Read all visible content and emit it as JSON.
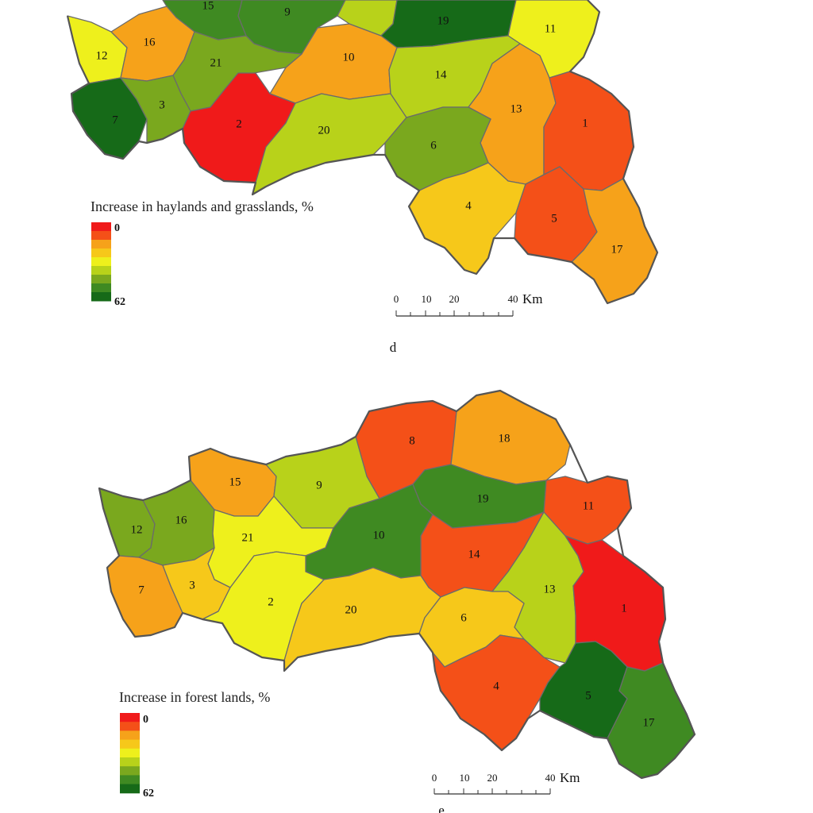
{
  "palette": [
    "#f01a1a",
    "#f45018",
    "#f6a21a",
    "#f6c81a",
    "#eef01c",
    "#b8d21a",
    "#7aa81e",
    "#3f8a22",
    "#166a18"
  ],
  "maps": [
    {
      "id": "d",
      "panel_label": "d",
      "legend": {
        "title": "Increase in haylands and grasslands, %",
        "min_label": "0",
        "max_label": "62",
        "min": 0,
        "max": 62
      },
      "scale": {
        "ticks": [
          "0",
          "10",
          "20",
          "40"
        ],
        "unit": "Km"
      },
      "districts": [
        {
          "id": "1",
          "class": 1
        },
        {
          "id": "2",
          "class": 0
        },
        {
          "id": "3",
          "class": 6
        },
        {
          "id": "4",
          "class": 3
        },
        {
          "id": "5",
          "class": 1
        },
        {
          "id": "6",
          "class": 6
        },
        {
          "id": "7",
          "class": 8
        },
        {
          "id": "9",
          "class": 7
        },
        {
          "id": "10",
          "class": 2
        },
        {
          "id": "11",
          "class": 4
        },
        {
          "id": "12",
          "class": 4
        },
        {
          "id": "13",
          "class": 2
        },
        {
          "id": "14",
          "class": 5
        },
        {
          "id": "15",
          "class": 7
        },
        {
          "id": "16",
          "class": 2
        },
        {
          "id": "17",
          "class": 2
        },
        {
          "id": "19",
          "class": 8
        },
        {
          "id": "20",
          "class": 5
        },
        {
          "id": "21",
          "class": 6
        }
      ]
    },
    {
      "id": "e",
      "panel_label": "e",
      "legend": {
        "title": "Increase in forest lands, %",
        "min_label": "0",
        "max_label": "62",
        "min": 0,
        "max": 62
      },
      "scale": {
        "ticks": [
          "0",
          "10",
          "20",
          "40"
        ],
        "unit": "Km"
      },
      "districts": [
        {
          "id": "1",
          "class": 0
        },
        {
          "id": "2",
          "class": 4
        },
        {
          "id": "3",
          "class": 3
        },
        {
          "id": "4",
          "class": 1
        },
        {
          "id": "5",
          "class": 8
        },
        {
          "id": "6",
          "class": 3
        },
        {
          "id": "7",
          "class": 2
        },
        {
          "id": "8",
          "class": 1
        },
        {
          "id": "9",
          "class": 5
        },
        {
          "id": "10",
          "class": 7
        },
        {
          "id": "11",
          "class": 1
        },
        {
          "id": "12",
          "class": 6
        },
        {
          "id": "13",
          "class": 5
        },
        {
          "id": "14",
          "class": 1
        },
        {
          "id": "15",
          "class": 2
        },
        {
          "id": "16",
          "class": 6
        },
        {
          "id": "17",
          "class": 7
        },
        {
          "id": "18",
          "class": 2
        },
        {
          "id": "19",
          "class": 7
        },
        {
          "id": "20",
          "class": 3
        },
        {
          "id": "21",
          "class": 4
        }
      ]
    }
  ]
}
